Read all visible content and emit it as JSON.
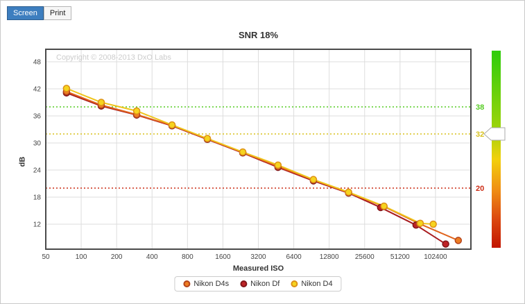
{
  "tabs": {
    "screen": "Screen",
    "print": "Print"
  },
  "title": "SNR 18%",
  "copyright": "Copyright © 2008-2013 DxO Labs",
  "axes": {
    "y_label": "dB",
    "x_label": "Measured ISO"
  },
  "legend": {
    "items": [
      {
        "label": "Nikon D4s",
        "color": "#ED7D23",
        "ring": "#B3431B"
      },
      {
        "label": "Nikon Df",
        "color": "#BE2326",
        "ring": "#801518"
      },
      {
        "label": "Nikon D4",
        "color": "#F6D41F",
        "ring": "#DD9117"
      }
    ]
  },
  "chart_data": {
    "type": "line",
    "title": "SNR 18%",
    "xlabel": "Measured ISO",
    "ylabel": "dB",
    "x_scale": "log2",
    "x_range": [
      50,
      204800
    ],
    "y_range": [
      6.5,
      50.8
    ],
    "grid": true,
    "grid_color": "#dddddd",
    "border_color": "#4a4a4a",
    "x_ticks": [
      50,
      100,
      200,
      400,
      800,
      1600,
      3200,
      6400,
      12800,
      25600,
      51200,
      102400
    ],
    "y_ticks": [
      12,
      18,
      24,
      30,
      36,
      42,
      48
    ],
    "reference_lines": [
      {
        "value": 38,
        "color": "#55CC22"
      },
      {
        "value": 32,
        "color": "#D8C11C"
      },
      {
        "value": 20,
        "color": "#CC2B14"
      }
    ],
    "slider": {
      "value": 32
    },
    "gradient_stops": [
      {
        "offset": 0,
        "color": "#2ECC0B"
      },
      {
        "offset": 0.4,
        "color": "#9ED40A"
      },
      {
        "offset": 0.55,
        "color": "#F2D00C"
      },
      {
        "offset": 0.7,
        "color": "#F09114"
      },
      {
        "offset": 0.85,
        "color": "#DC4A10"
      },
      {
        "offset": 1,
        "color": "#C21500"
      }
    ],
    "series": [
      {
        "name": "Nikon Df",
        "color": "#BE2326",
        "line_color": "#A81C1F",
        "ring": "#801518",
        "points": [
          [
            75,
            41.1
          ],
          [
            148,
            38.2
          ],
          [
            296,
            36.2
          ],
          [
            591,
            33.8
          ],
          [
            1180,
            30.8
          ],
          [
            2360,
            27.8
          ],
          [
            4700,
            24.6
          ],
          [
            9400,
            21.6
          ],
          [
            18700,
            18.9
          ],
          [
            35000,
            15.7
          ],
          [
            70000,
            11.8
          ],
          [
            125000,
            7.6
          ]
        ]
      },
      {
        "name": "Nikon D4s",
        "color": "#ED7D23",
        "line_color": "#E0631C",
        "ring": "#B3431B",
        "points": [
          [
            75,
            41.4
          ],
          [
            148,
            38.4
          ],
          [
            296,
            36.3
          ],
          [
            591,
            33.9
          ],
          [
            1180,
            30.9
          ],
          [
            2360,
            27.9
          ],
          [
            4700,
            24.8
          ],
          [
            9400,
            21.8
          ],
          [
            18700,
            19.0
          ],
          [
            37400,
            15.9
          ],
          [
            74800,
            12.1
          ],
          [
            160000,
            8.4
          ]
        ]
      },
      {
        "name": "Nikon D4",
        "color": "#F6D41F",
        "line_color": "#EFC41C",
        "ring": "#DD9117",
        "points": [
          [
            75,
            42.1
          ],
          [
            148,
            39.0
          ],
          [
            296,
            37.1
          ],
          [
            591,
            34.0
          ],
          [
            1180,
            31.0
          ],
          [
            2360,
            28.0
          ],
          [
            4700,
            25.1
          ],
          [
            9400,
            21.9
          ],
          [
            18700,
            19.1
          ],
          [
            37400,
            16.0
          ],
          [
            76000,
            12.2
          ],
          [
            98000,
            12.0
          ]
        ]
      }
    ]
  }
}
